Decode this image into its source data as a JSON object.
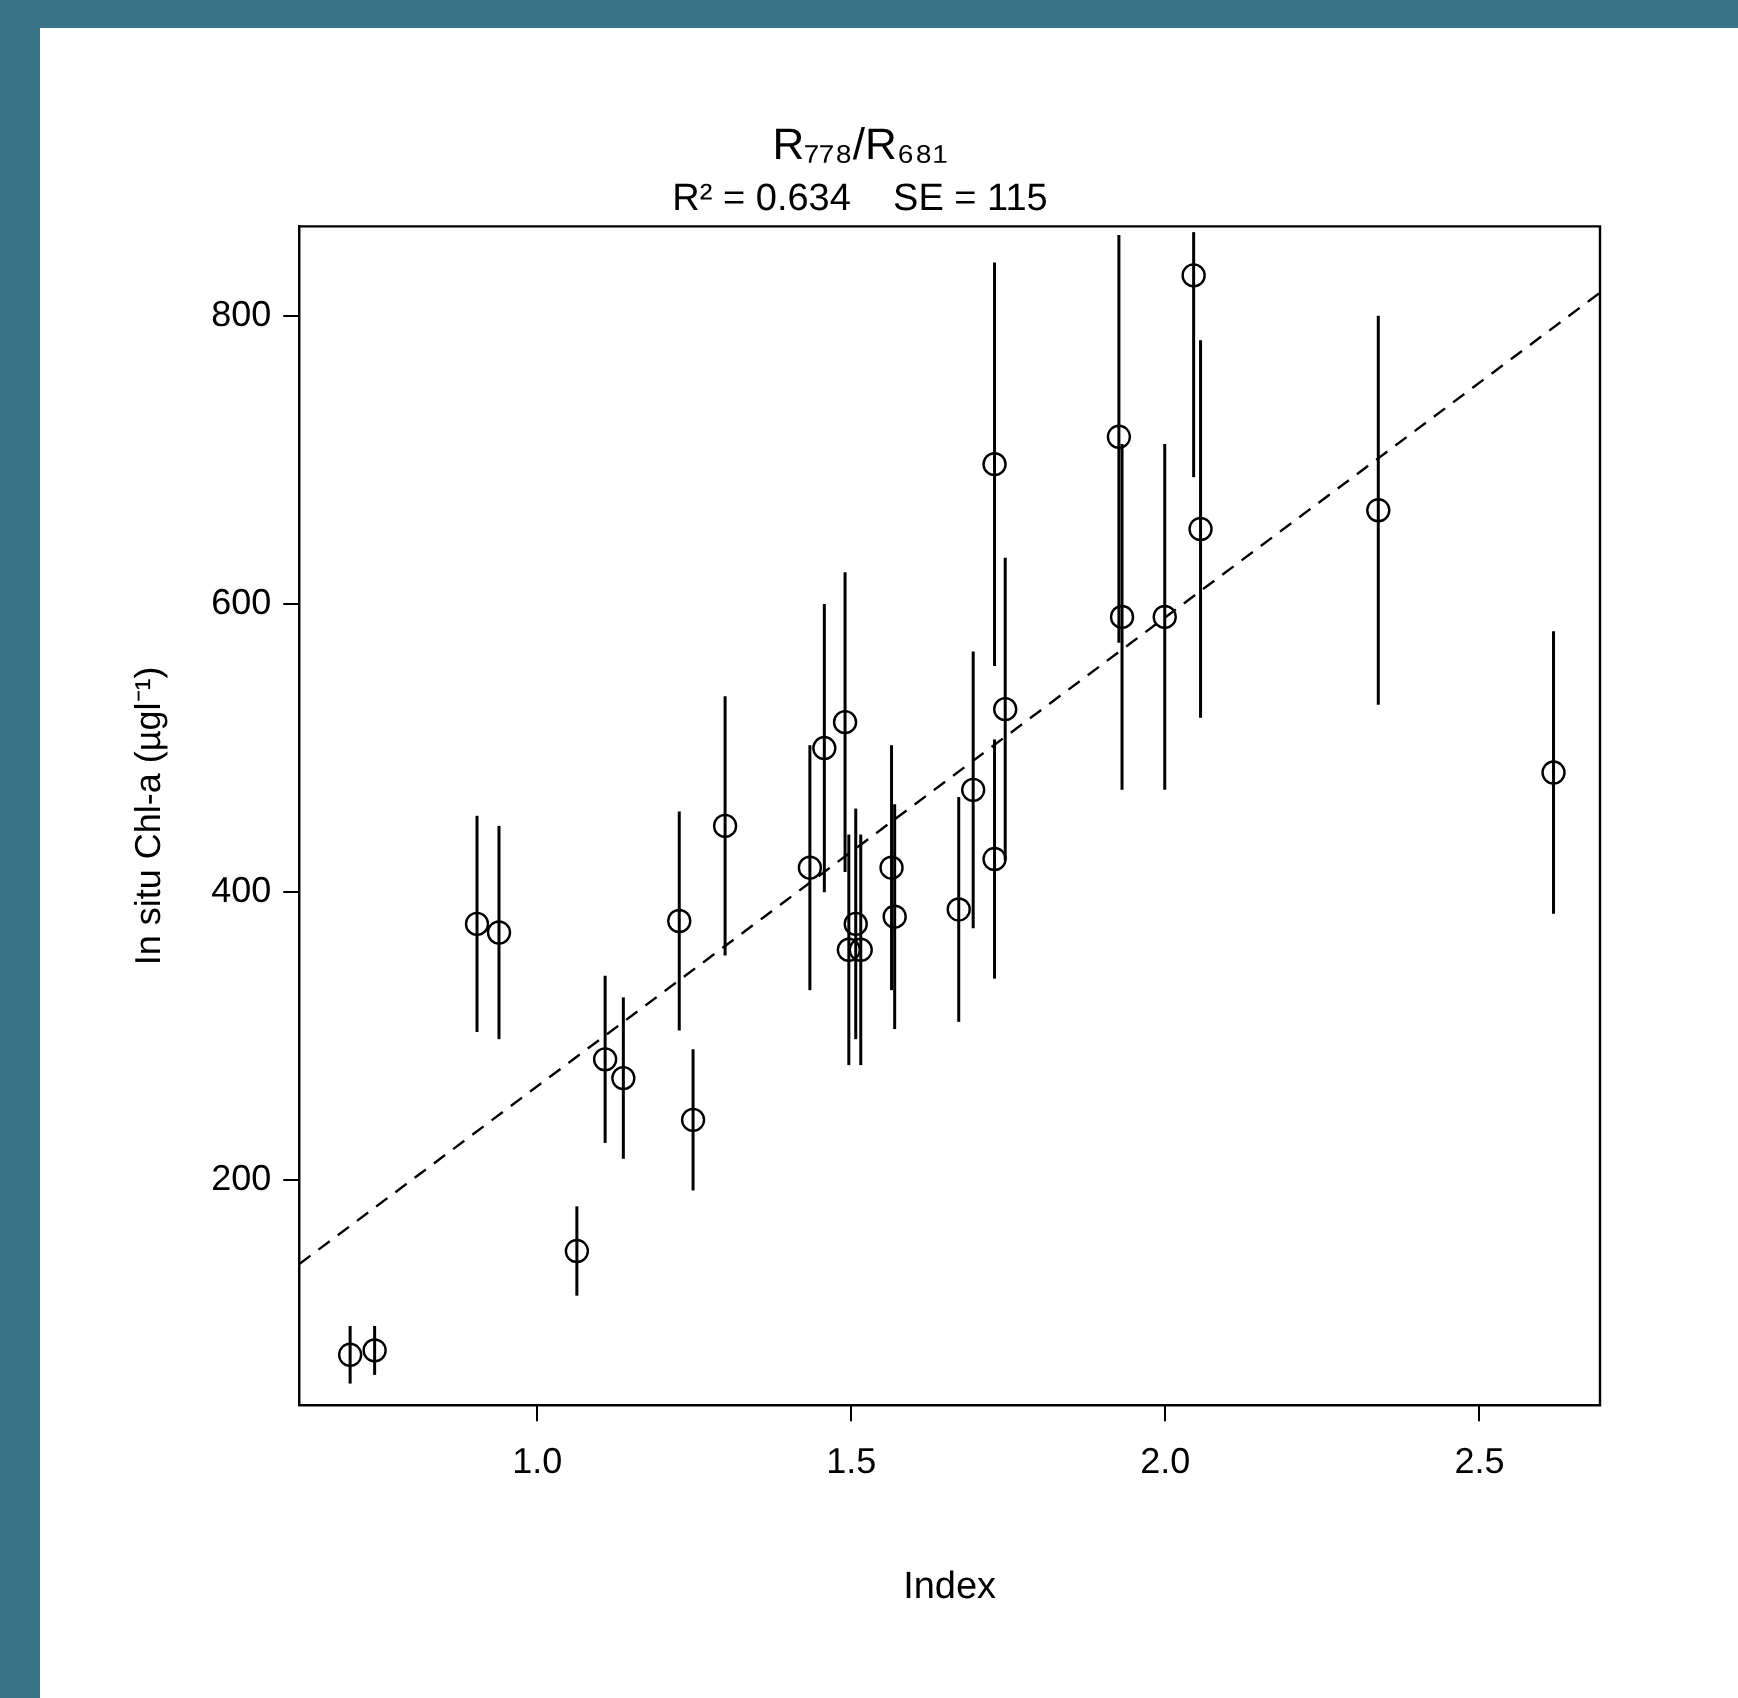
{
  "chart_data": {
    "type": "scatter",
    "title": "R₇₇₈/R₆₈₁",
    "subtitle": "R² = 0.634    SE = 115",
    "xlabel": "Index",
    "ylabel": "In situ Chl-a (µgl⁻¹)",
    "xlim": [
      0.621,
      2.692
    ],
    "ylim": [
      44,
      862
    ],
    "xticks": [
      {
        "value": 1,
        "label": "1.0"
      },
      {
        "value": 1.5,
        "label": "1.5"
      },
      {
        "value": 2,
        "label": "2.0"
      },
      {
        "value": 2.5,
        "label": "2.5"
      }
    ],
    "yticks": [
      200,
      400,
      600,
      800
    ],
    "grid": false,
    "legend": false,
    "marker": "circle",
    "series": [
      {
        "color": "#000000",
        "x": [
          0.702,
          0.741,
          0.904,
          0.939,
          1.063,
          1.108,
          1.137,
          1.226,
          1.248,
          1.299,
          1.434,
          1.457,
          1.49,
          1.496,
          1.515,
          1.507,
          1.564,
          1.569,
          1.671,
          1.694,
          1.728,
          1.728,
          1.745,
          1.926,
          1.931,
          1.999,
          2.045,
          2.056,
          2.339,
          2.618
        ],
        "values": [
          79,
          82,
          378,
          372,
          151,
          284,
          271,
          380,
          242,
          446,
          417,
          500,
          518,
          360,
          360,
          378,
          417,
          383,
          388,
          471,
          423,
          697,
          527,
          716,
          591,
          591,
          828,
          652,
          665,
          483
        ],
        "errors": [
          20,
          17,
          75,
          74,
          31,
          58,
          56,
          76,
          49,
          90,
          85,
          100,
          104,
          80,
          80,
          80,
          85,
          78,
          78,
          96,
          83,
          140,
          105,
          [
            573,
            856
          ],
          120,
          120,
          [
            688,
            858
          ],
          131,
          135,
          98
        ]
      },
      {
        "type": "line",
        "color": "#000000",
        "line_style": "dashed",
        "marker": "none",
        "x": [
          0.621,
          2.692
        ],
        "values": [
          142,
          816
        ]
      }
    ]
  }
}
